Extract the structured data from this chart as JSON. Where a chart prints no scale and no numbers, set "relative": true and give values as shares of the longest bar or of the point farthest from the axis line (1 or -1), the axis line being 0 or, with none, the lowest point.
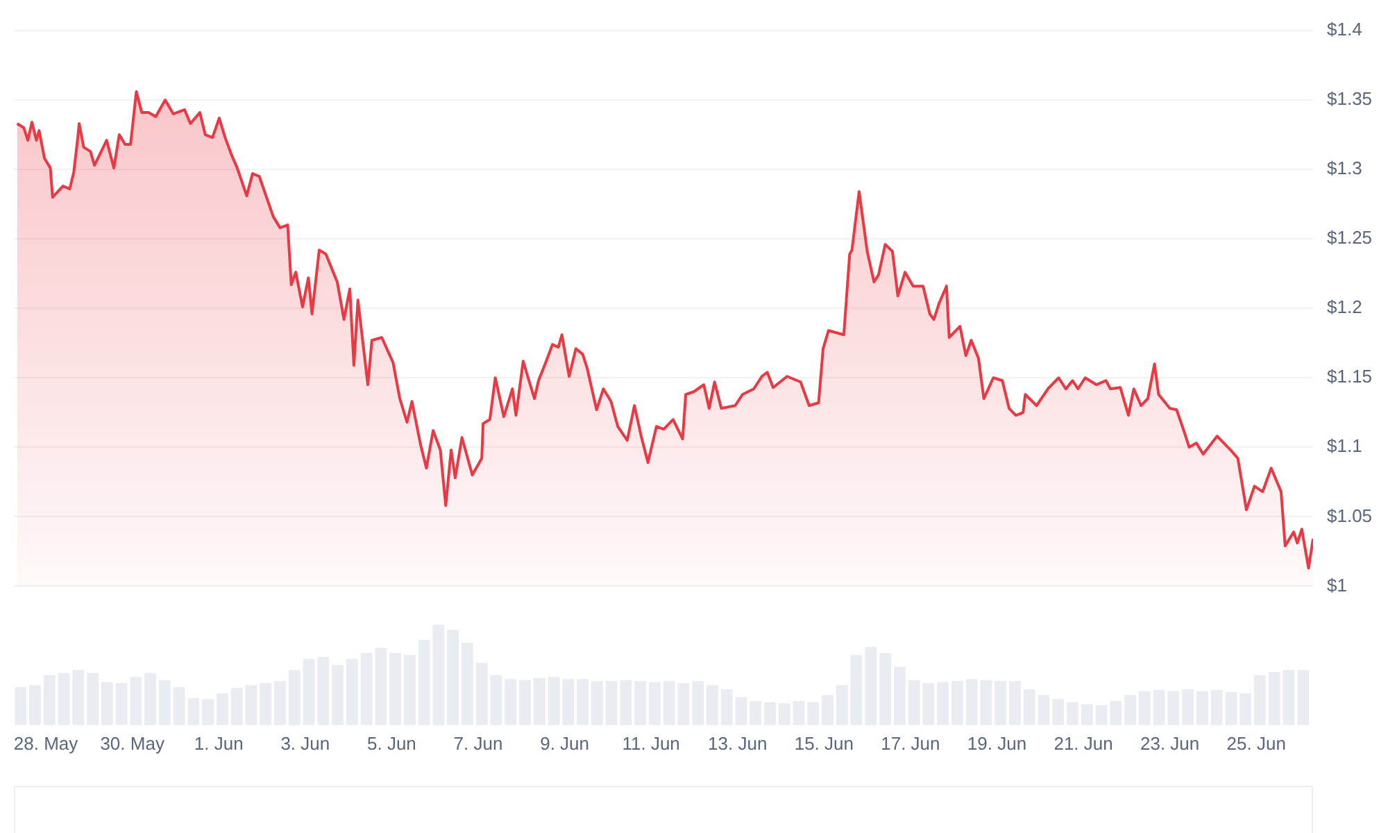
{
  "chart_data": [
    {
      "type": "area",
      "color": "#ea3943",
      "grid": "y",
      "tick_labels": "y",
      "xlim": [
        "--05-27T06:15",
        "--06-26T07:30"
      ],
      "ylim": [
        1,
        1.4
      ],
      "yticks": [
        {
          "value": 1,
          "label": "$1"
        },
        {
          "value": 1.05,
          "label": "$1.05"
        },
        {
          "value": 1.1,
          "label": "$1.1"
        },
        {
          "value": 1.15,
          "label": "$1.15"
        },
        {
          "value": 1.2,
          "label": "$1.2"
        },
        {
          "value": 1.25,
          "label": "$1.25"
        },
        {
          "value": 1.3,
          "label": "$1.3"
        },
        {
          "value": 1.35,
          "label": "$1.35"
        },
        {
          "value": 1.4,
          "label": "$1.4"
        }
      ],
      "x": [
        "--05-27T08:00",
        "--05-27T11:45",
        "--05-27T14:00",
        "--05-27T16:15",
        "--05-27T18:45",
        "--05-27T20:15",
        "--05-27T23:15",
        "--05-28T02:30",
        "--05-28T03:45",
        "--05-28T09:30",
        "--05-28T13:15",
        "--05-28T15:30",
        "--05-28T17:45",
        "--05-28T18:30",
        "--05-28T21:00",
        "--05-29T00:45",
        "--05-29T03:00",
        "--05-29T06:45",
        "--05-29T09:45",
        "--05-29T13:45",
        "--05-29T16:45",
        "--05-29T20:00",
        "--05-29T23:00",
        "--05-30T02:15",
        "--05-30T05:15",
        "--05-30T09:00",
        "--05-30T13:00",
        "--05-30T18:15",
        "--05-30T22:45",
        "--05-31T05:00",
        "--05-31T08:15",
        "--05-31T13:30",
        "--05-31T16:30",
        "--05-31T20:30",
        "--06-01T00:15",
        "--06-01T03:30",
        "--06-01T07:15",
        "--06-01T10:15",
        "--06-01T15:30",
        "--06-01T18:45",
        "--06-01T22:30",
        "--06-02T02:30",
        "--06-02T06:15",
        "--06-02T10:00",
        "--06-02T14:15",
        "--06-02T16:15",
        "--06-02T18:45",
        "--06-02T22:30",
        "--06-03T01:45",
        "--06-03T03:45",
        "--06-03T07:45",
        "--06-03T11:30",
        "--06-03T17:45",
        "--06-03T21:30",
        "--06-04T00:45",
        "--06-04T03:00",
        "--06-04T05:15",
        "--06-04T10:45",
        "--06-04T13:00",
        "--06-04T18:30",
        "--06-05T00:45",
        "--06-05T04:30",
        "--06-05T08:30",
        "--06-05T11:15",
        "--06-05T16:00",
        "--06-05T19:15",
        "--06-05T23:00",
        "--06-06T03:00",
        "--06-06T06:00",
        "--06-06T09:00",
        "--06-06T11:15",
        "--06-06T15:00",
        "--06-06T20:45",
        "--06-07T02:00",
        "--06-07T02:45",
        "--06-07T06:30",
        "--06-07T09:30",
        "--06-07T14:15",
        "--06-07T19:00",
        "--06-07T21:00",
        "--06-08T01:00",
        "--06-08T03:30",
        "--06-08T07:15",
        "--06-08T09:30",
        "--06-08T13:30",
        "--06-08T17:15",
        "--06-08T20:30",
        "--06-08T22:30",
        "--06-09T02:30",
        "--06-09T06:15",
        "--06-09T10:00",
        "--06-09T12:30",
        "--06-09T17:45",
        "--06-09T21:30",
        "--06-10T01:45",
        "--06-10T05:30",
        "--06-10T10:45",
        "--06-10T14:45",
        "--06-10T18:30",
        "--06-10T22:15",
        "--06-11T03:00",
        "--06-11T07:00",
        "--06-11T12:15",
        "--06-11T17:30",
        "--06-11T19:15",
        "--06-11T23:45",
        "--06-12T05:15",
        "--06-12T08:15",
        "--06-12T11:15",
        "--06-12T15:00",
        "--06-12T22:45",
        "--06-13T02:45",
        "--06-13T09:00",
        "--06-13T13:30",
        "--06-13T16:30",
        "--06-13T19:45",
        "--06-14T03:30",
        "--06-14T11:00",
        "--06-14T15:45",
        "--06-14T21:00",
        "--06-14T23:30",
        "--06-15T02:30",
        "--06-15T11:00",
        "--06-15T14:15",
        "--06-15T15:30",
        "--06-15T19:30",
        "--06-16T00:00",
        "--06-16T03:45",
        "--06-16T06:15",
        "--06-16T10:00",
        "--06-16T14:00",
        "--06-16T17:00",
        "--06-16T21:00",
        "--06-17T01:30",
        "--06-17T07:00",
        "--06-17T10:45",
        "--06-17T13:00",
        "--06-17T16:00",
        "--06-17T20:00",
        "--06-17T21:30",
        "--06-18T03:30",
        "--06-18T06:45",
        "--06-18T09:45",
        "--06-18T13:45",
        "--06-18T16:45",
        "--06-18T22:00",
        "--06-19T03:00",
        "--06-19T06:45",
        "--06-19T10:30",
        "--06-19T14:30",
        "--06-19T15:45",
        "--06-19T22:00",
        "--06-20T04:15",
        "--06-20T10:15",
        "--06-20T14:15",
        "--06-20T18:00",
        "--06-20T21:00",
        "--06-21T01:00",
        "--06-21T07:15",
        "--06-21T12:30",
        "--06-21T15:00",
        "--06-21T20:30",
        "--06-22T01:00",
        "--06-22T04:00",
        "--06-22T08:00",
        "--06-22T11:45",
        "--06-22T15:30",
        "--06-22T17:45",
        "--06-23T00:00",
        "--06-23T03:45",
        "--06-23T07:45",
        "--06-23T10:45",
        "--06-23T14:45",
        "--06-23T18:30",
        "--06-24T02:15",
        "--06-24T09:45",
        "--06-24T13:45",
        "--06-24T18:30",
        "--06-24T23:00",
        "--06-25T03:30",
        "--06-25T08:15",
        "--06-25T13:45",
        "--06-25T16:00",
        "--06-25T20:45",
        "--06-25T22:45",
        "--06-26T01:15",
        "--06-26T05:00",
        "--06-26T07:30"
      ],
      "values": [
        1.333,
        1.33,
        1.321,
        1.334,
        1.321,
        1.328,
        1.308,
        1.301,
        1.28,
        1.288,
        1.286,
        1.298,
        1.323,
        1.333,
        1.316,
        1.313,
        1.303,
        1.313,
        1.321,
        1.301,
        1.325,
        1.318,
        1.318,
        1.356,
        1.341,
        1.341,
        1.338,
        1.35,
        1.34,
        1.343,
        1.333,
        1.341,
        1.325,
        1.323,
        1.337,
        1.323,
        1.31,
        1.301,
        1.281,
        1.297,
        1.295,
        1.28,
        1.266,
        1.258,
        1.26,
        1.217,
        1.226,
        1.201,
        1.222,
        1.196,
        1.242,
        1.239,
        1.219,
        1.192,
        1.214,
        1.159,
        1.206,
        1.145,
        1.177,
        1.179,
        1.161,
        1.135,
        1.118,
        1.133,
        1.102,
        1.085,
        1.112,
        1.098,
        1.058,
        1.098,
        1.078,
        1.107,
        1.08,
        1.092,
        1.117,
        1.12,
        1.15,
        1.122,
        1.142,
        1.123,
        1.162,
        1.151,
        1.135,
        1.148,
        1.161,
        1.174,
        1.172,
        1.181,
        1.151,
        1.171,
        1.167,
        1.157,
        1.127,
        1.142,
        1.133,
        1.115,
        1.105,
        1.13,
        1.108,
        1.089,
        1.115,
        1.113,
        1.12,
        1.106,
        1.138,
        1.14,
        1.145,
        1.128,
        1.147,
        1.128,
        1.13,
        1.138,
        1.142,
        1.151,
        1.154,
        1.143,
        1.151,
        1.147,
        1.13,
        1.132,
        1.171,
        1.184,
        1.181,
        1.239,
        1.242,
        1.284,
        1.241,
        1.219,
        1.224,
        1.246,
        1.241,
        1.209,
        1.226,
        1.216,
        1.216,
        1.196,
        1.192,
        1.204,
        1.216,
        1.179,
        1.187,
        1.166,
        1.177,
        1.164,
        1.135,
        1.15,
        1.148,
        1.128,
        1.123,
        1.125,
        1.138,
        1.13,
        1.142,
        1.15,
        1.142,
        1.148,
        1.142,
        1.15,
        1.145,
        1.148,
        1.142,
        1.143,
        1.123,
        1.142,
        1.13,
        1.135,
        1.16,
        1.138,
        1.128,
        1.127,
        1.112,
        1.1,
        1.103,
        1.095,
        1.108,
        1.098,
        1.092,
        1.055,
        1.072,
        1.068,
        1.085,
        1.068,
        1.029,
        1.039,
        1.031,
        1.041,
        1.013,
        1.034
      ]
    },
    {
      "type": "bar",
      "color": "#e9edf1",
      "relative": true,
      "tick_labels": "x",
      "xlim": [
        "--05-27T06:15",
        "--06-26T07:30"
      ],
      "xticks": [
        {
          "value": "--05-28",
          "label": "28. May"
        },
        {
          "value": "--05-30",
          "label": "30. May"
        },
        {
          "value": "--06-01",
          "label": "1. Jun"
        },
        {
          "value": "--06-03",
          "label": "3. Jun"
        },
        {
          "value": "--06-05",
          "label": "5. Jun"
        },
        {
          "value": "--06-07",
          "label": "7. Jun"
        },
        {
          "value": "--06-09",
          "label": "9. Jun"
        },
        {
          "value": "--06-11",
          "label": "11. Jun"
        },
        {
          "value": "--06-13",
          "label": "13. Jun"
        },
        {
          "value": "--06-15",
          "label": "15. Jun"
        },
        {
          "value": "--06-17",
          "label": "17. Jun"
        },
        {
          "value": "--06-19",
          "label": "19. Jun"
        },
        {
          "value": "--06-21",
          "label": "21. Jun"
        },
        {
          "value": "--06-23",
          "label": "23. Jun"
        },
        {
          "value": "--06-25",
          "label": "25. Jun"
        }
      ],
      "x": [
        "--05-27T10:00",
        "--05-27T18:00",
        "--05-28T02:00",
        "--05-28T10:00",
        "--05-28T18:00",
        "--05-29T02:00",
        "--05-29T10:00",
        "--05-29T18:00",
        "--05-30T02:00",
        "--05-30T10:00",
        "--05-30T18:00",
        "--05-31T02:00",
        "--05-31T10:00",
        "--05-31T18:00",
        "--06-01T02:00",
        "--06-01T10:00",
        "--06-01T18:00",
        "--06-02T02:00",
        "--06-02T10:00",
        "--06-02T18:00",
        "--06-03T02:00",
        "--06-03T10:00",
        "--06-03T18:00",
        "--06-04T02:00",
        "--06-04T10:00",
        "--06-04T18:00",
        "--06-05T02:00",
        "--06-05T10:00",
        "--06-05T18:00",
        "--06-06T02:00",
        "--06-06T10:00",
        "--06-06T18:00",
        "--06-07T02:00",
        "--06-07T10:00",
        "--06-07T18:00",
        "--06-08T02:00",
        "--06-08T10:00",
        "--06-08T18:00",
        "--06-09T02:00",
        "--06-09T10:00",
        "--06-09T18:00",
        "--06-10T02:00",
        "--06-10T10:00",
        "--06-10T18:00",
        "--06-11T02:00",
        "--06-11T10:00",
        "--06-11T18:00",
        "--06-12T02:00",
        "--06-12T10:00",
        "--06-12T18:00",
        "--06-13T02:00",
        "--06-13T10:00",
        "--06-13T18:00",
        "--06-14T02:00",
        "--06-14T10:00",
        "--06-14T18:00",
        "--06-15T02:00",
        "--06-15T10:00",
        "--06-15T18:00",
        "--06-16T02:00",
        "--06-16T10:00",
        "--06-16T18:00",
        "--06-17T02:00",
        "--06-17T10:00",
        "--06-17T18:00",
        "--06-18T02:00",
        "--06-18T10:00",
        "--06-18T18:00",
        "--06-19T02:00",
        "--06-19T10:00",
        "--06-19T18:00",
        "--06-20T02:00",
        "--06-20T10:00",
        "--06-20T18:00",
        "--06-21T02:00",
        "--06-21T10:00",
        "--06-21T18:00",
        "--06-22T02:00",
        "--06-22T10:00",
        "--06-22T18:00",
        "--06-23T02:00",
        "--06-23T10:00",
        "--06-23T18:00",
        "--06-24T02:00",
        "--06-24T10:00",
        "--06-24T18:00",
        "--06-25T02:00",
        "--06-25T10:00",
        "--06-25T18:00",
        "--06-26T02:00"
      ],
      "values": [
        0.38,
        0.4,
        0.5,
        0.52,
        0.55,
        0.52,
        0.43,
        0.42,
        0.48,
        0.52,
        0.45,
        0.38,
        0.27,
        0.26,
        0.32,
        0.37,
        0.4,
        0.42,
        0.44,
        0.55,
        0.66,
        0.68,
        0.6,
        0.66,
        0.72,
        0.77,
        0.72,
        0.7,
        0.85,
        1,
        0.95,
        0.82,
        0.62,
        0.5,
        0.46,
        0.45,
        0.47,
        0.48,
        0.46,
        0.46,
        0.44,
        0.44,
        0.45,
        0.44,
        0.43,
        0.44,
        0.42,
        0.44,
        0.4,
        0.36,
        0.28,
        0.24,
        0.23,
        0.22,
        0.24,
        0.23,
        0.3,
        0.4,
        0.7,
        0.78,
        0.72,
        0.58,
        0.45,
        0.42,
        0.43,
        0.44,
        0.46,
        0.45,
        0.44,
        0.44,
        0.36,
        0.3,
        0.26,
        0.23,
        0.21,
        0.2,
        0.24,
        0.3,
        0.34,
        0.35,
        0.34,
        0.36,
        0.34,
        0.35,
        0.33,
        0.32,
        0.5,
        0.53,
        0.55,
        0.55
      ]
    }
  ]
}
